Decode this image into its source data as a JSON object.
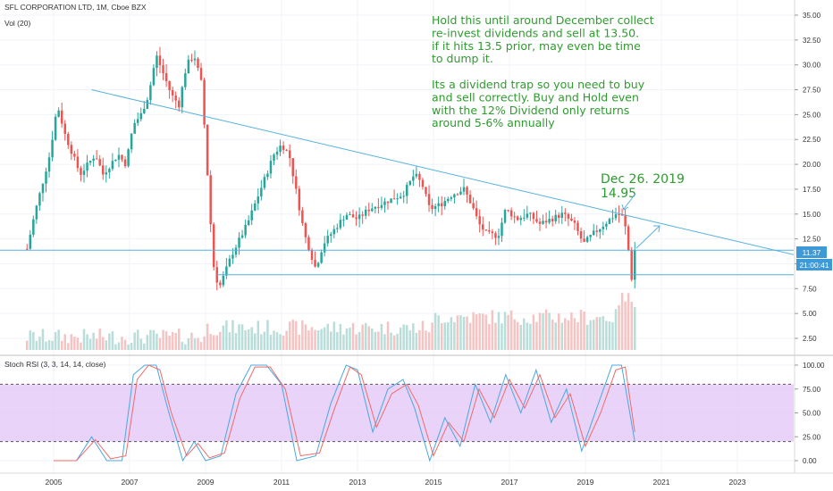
{
  "header": {
    "symbol": "SFL CORPORATION LTD, 1M, Cboe BZX",
    "volume_label": "Vol (20)"
  },
  "price_badge": "11.37",
  "timer_badge": "21:00:41",
  "annotation_lines": [
    "Hold this until around December collect",
    "re-invest dividends and sell at 13.50.",
    "if it hits 13.5 prior,  may even be time",
    "to dump it.",
    "",
    "Its a dividend trap so you need to buy",
    "and sell correctly.  Buy and Hold even",
    "with the 12% Dividend only returns",
    "around 5-6% annually"
  ],
  "callout": {
    "line1": "Dec  26. 2019",
    "line2": "14.95"
  },
  "colors": {
    "up": "#26a69a",
    "down": "#ef5350",
    "vol_up": "#b9ddd9",
    "vol_down": "#f4c3c2",
    "trend": "#56b1e0",
    "annotation": "#2e9c2e",
    "stoch_k": "#4aa8df",
    "stoch_d": "#ef6a6a",
    "rsi_band": "#e1c4f7",
    "badge": "#3e9ad6"
  },
  "chart_data": [
    {
      "type": "candlestick",
      "title": "SFL CORPORATION LTD, 1M, Cboe BZX",
      "ylim": [
        1.5,
        36
      ],
      "y_ticks": [
        "35.00",
        "32.50",
        "30.00",
        "27.50",
        "25.00",
        "22.50",
        "20.00",
        "17.50",
        "15.00",
        "12.50",
        "10.00",
        "7.50",
        "5.00",
        "2.50"
      ],
      "x_ticks": [
        "2005",
        "2007",
        "2009",
        "2011",
        "2013",
        "2015",
        "2017",
        "2019",
        "2021",
        "2023"
      ],
      "last_price": 11.37,
      "horizontal_levels": [
        11.37,
        8.9
      ],
      "trendline": {
        "from": [
          2006.0,
          27.5
        ],
        "to": [
          2024.5,
          10.9
        ]
      },
      "price_path": [
        [
          2004.3,
          11.5
        ],
        [
          2004.5,
          15
        ],
        [
          2004.7,
          18
        ],
        [
          2004.9,
          21
        ],
        [
          2005.1,
          26
        ],
        [
          2005.3,
          23
        ],
        [
          2005.5,
          21
        ],
        [
          2005.7,
          19
        ],
        [
          2005.9,
          20
        ],
        [
          2006.1,
          21
        ],
        [
          2006.3,
          19
        ],
        [
          2006.5,
          20
        ],
        [
          2006.7,
          21
        ],
        [
          2006.9,
          20
        ],
        [
          2007.1,
          24
        ],
        [
          2007.3,
          25
        ],
        [
          2007.5,
          27
        ],
        [
          2007.7,
          31
        ],
        [
          2007.9,
          29
        ],
        [
          2008.1,
          27
        ],
        [
          2008.3,
          26
        ],
        [
          2008.5,
          30
        ],
        [
          2008.7,
          31
        ],
        [
          2008.9,
          28
        ],
        [
          2009.05,
          19
        ],
        [
          2009.2,
          10
        ],
        [
          2009.35,
          7.5
        ],
        [
          2009.5,
          9
        ],
        [
          2009.7,
          11
        ],
        [
          2009.9,
          12.5
        ],
        [
          2010.1,
          14
        ],
        [
          2010.3,
          16
        ],
        [
          2010.5,
          18
        ],
        [
          2010.8,
          21
        ],
        [
          2011.0,
          22
        ],
        [
          2011.2,
          21
        ],
        [
          2011.4,
          17
        ],
        [
          2011.6,
          13
        ],
        [
          2011.9,
          9.5
        ],
        [
          2012.1,
          12
        ],
        [
          2012.4,
          13.5
        ],
        [
          2012.7,
          15
        ],
        [
          2013.0,
          14.5
        ],
        [
          2013.3,
          15.5
        ],
        [
          2013.6,
          16
        ],
        [
          2013.9,
          16.5
        ],
        [
          2014.2,
          17
        ],
        [
          2014.5,
          19
        ],
        [
          2014.7,
          18
        ],
        [
          2014.9,
          15.5
        ],
        [
          2015.2,
          16
        ],
        [
          2015.5,
          17
        ],
        [
          2015.8,
          17.5
        ],
        [
          2016.0,
          16
        ],
        [
          2016.2,
          14
        ],
        [
          2016.4,
          13
        ],
        [
          2016.7,
          12.8
        ],
        [
          2016.9,
          15.5
        ],
        [
          2017.2,
          14.5
        ],
        [
          2017.5,
          15
        ],
        [
          2017.8,
          14
        ],
        [
          2018.1,
          14.5
        ],
        [
          2018.4,
          15
        ],
        [
          2018.7,
          14
        ],
        [
          2018.95,
          12
        ],
        [
          2019.2,
          13
        ],
        [
          2019.5,
          14
        ],
        [
          2019.8,
          15
        ],
        [
          2019.95,
          14.95
        ],
        [
          2020.1,
          13
        ],
        [
          2020.2,
          8
        ],
        [
          2020.3,
          11.37
        ]
      ],
      "volume_ylim": [
        0,
        60
      ],
      "volume_ticks": []
    },
    {
      "type": "line",
      "title": "Stoch RSI (3, 3, 14, 14, close)",
      "ylim": [
        -5,
        105
      ],
      "y_ticks": [
        "100.00",
        "75.00",
        "50.00",
        "25.00",
        "0.00"
      ],
      "band": [
        20,
        80
      ],
      "k_path": [
        [
          2005.0,
          0
        ],
        [
          2005.6,
          0
        ],
        [
          2006.0,
          25
        ],
        [
          2006.4,
          0
        ],
        [
          2006.8,
          0
        ],
        [
          2007.1,
          90
        ],
        [
          2007.4,
          100
        ],
        [
          2007.7,
          100
        ],
        [
          2008.0,
          55
        ],
        [
          2008.4,
          0
        ],
        [
          2008.7,
          20
        ],
        [
          2009.0,
          0
        ],
        [
          2009.4,
          5
        ],
        [
          2009.8,
          70
        ],
        [
          2010.2,
          100
        ],
        [
          2010.6,
          100
        ],
        [
          2011.0,
          80
        ],
        [
          2011.4,
          0
        ],
        [
          2011.9,
          5
        ],
        [
          2012.3,
          60
        ],
        [
          2012.7,
          100
        ],
        [
          2013.0,
          95
        ],
        [
          2013.4,
          30
        ],
        [
          2013.8,
          75
        ],
        [
          2014.2,
          85
        ],
        [
          2014.5,
          55
        ],
        [
          2014.9,
          0
        ],
        [
          2015.3,
          45
        ],
        [
          2015.7,
          15
        ],
        [
          2016.1,
          80
        ],
        [
          2016.5,
          40
        ],
        [
          2016.9,
          90
        ],
        [
          2017.3,
          50
        ],
        [
          2017.7,
          95
        ],
        [
          2018.1,
          40
        ],
        [
          2018.5,
          75
        ],
        [
          2018.9,
          10
        ],
        [
          2019.3,
          55
        ],
        [
          2019.7,
          100
        ],
        [
          2019.95,
          100
        ],
        [
          2020.3,
          20
        ]
      ],
      "d_path": [
        [
          2005.0,
          0
        ],
        [
          2005.6,
          0
        ],
        [
          2006.1,
          22
        ],
        [
          2006.5,
          2
        ],
        [
          2006.9,
          5
        ],
        [
          2007.2,
          85
        ],
        [
          2007.5,
          100
        ],
        [
          2007.8,
          95
        ],
        [
          2008.1,
          50
        ],
        [
          2008.5,
          5
        ],
        [
          2008.8,
          18
        ],
        [
          2009.1,
          3
        ],
        [
          2009.5,
          8
        ],
        [
          2009.9,
          65
        ],
        [
          2010.3,
          98
        ],
        [
          2010.7,
          98
        ],
        [
          2011.1,
          75
        ],
        [
          2011.5,
          5
        ],
        [
          2012.0,
          8
        ],
        [
          2012.4,
          55
        ],
        [
          2012.8,
          98
        ],
        [
          2013.1,
          90
        ],
        [
          2013.5,
          35
        ],
        [
          2013.9,
          70
        ],
        [
          2014.3,
          80
        ],
        [
          2014.6,
          58
        ],
        [
          2015.0,
          5
        ],
        [
          2015.4,
          40
        ],
        [
          2015.8,
          20
        ],
        [
          2016.2,
          75
        ],
        [
          2016.6,
          45
        ],
        [
          2017.0,
          85
        ],
        [
          2017.4,
          55
        ],
        [
          2017.8,
          90
        ],
        [
          2018.2,
          45
        ],
        [
          2018.6,
          70
        ],
        [
          2019.0,
          15
        ],
        [
          2019.4,
          50
        ],
        [
          2019.8,
          95
        ],
        [
          2020.05,
          98
        ],
        [
          2020.3,
          30
        ]
      ]
    }
  ]
}
